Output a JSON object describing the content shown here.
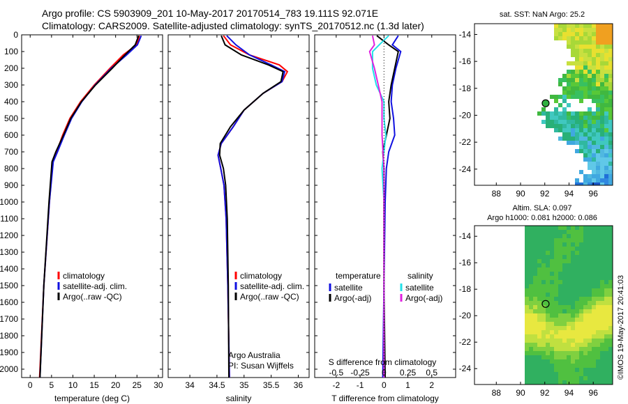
{
  "header": {
    "line1": "Argo profile: CS 5903909_201 10-May-2017 20170514_783 19.111S 92.071E",
    "line2": "Climatology: CARS2009. Satellite-adjusted climatology: synTS_20170512.nc (1.3d later)"
  },
  "colors": {
    "climatology": "#ff0000",
    "satellite": "#1010e0",
    "argo": "#000000",
    "salinity_satellite": "#22e0e8",
    "salinity_argo": "#e020e0"
  },
  "chart_data": [
    {
      "type": "line",
      "name": "temperature",
      "xlabel": "temperature (deg C)",
      "ylabel": "",
      "xlim": [
        -2,
        31
      ],
      "ylim": [
        2050,
        0
      ],
      "x_ticks": [
        0,
        5,
        10,
        15,
        20,
        25,
        30
      ],
      "y_ticks": [
        0,
        100,
        200,
        300,
        400,
        500,
        600,
        700,
        800,
        900,
        1000,
        1100,
        1200,
        1300,
        1400,
        1500,
        1600,
        1700,
        1800,
        1900,
        2000
      ],
      "legend": [
        "climatology",
        "satellite-adj. clim.",
        "Argo(..raw -QC)"
      ],
      "series": [
        {
          "name": "climatology",
          "depth": [
            5,
            60,
            120,
            200,
            300,
            400,
            500,
            600,
            700,
            760,
            1000,
            1500,
            2050
          ],
          "values": [
            25.6,
            24.9,
            21.8,
            18.7,
            15.0,
            11.8,
            9.3,
            7.6,
            6.2,
            5.3,
            4.5,
            3.2,
            2.2
          ]
        },
        {
          "name": "satellite-adj. clim.",
          "depth": [
            5,
            60,
            120,
            200,
            300,
            400,
            500,
            600,
            700,
            760,
            1000,
            1500,
            2050
          ],
          "values": [
            26.0,
            25.1,
            22.6,
            19.0,
            15.2,
            12.1,
            9.7,
            8.0,
            6.4,
            5.4,
            4.5,
            3.2,
            2.3
          ]
        },
        {
          "name": "Argo(..raw -QC)",
          "depth": [
            5,
            60,
            120,
            200,
            300,
            400,
            500,
            600,
            700,
            760,
            1000,
            1500,
            2050
          ],
          "values": [
            25.4,
            24.6,
            22.2,
            19.2,
            15.3,
            12.0,
            9.5,
            7.8,
            6.0,
            5.1,
            4.4,
            3.2,
            2.3
          ]
        }
      ]
    },
    {
      "type": "line",
      "name": "salinity",
      "xlabel": "salinity",
      "ylabel": "",
      "xlim": [
        33.6,
        36.2
      ],
      "ylim": [
        2050,
        0
      ],
      "x_ticks": [
        34,
        34.5,
        35,
        35.5,
        36
      ],
      "legend": [
        "climatology",
        "satellite-adj. clim.",
        "Argo(..raw -QC)"
      ],
      "annotations": [
        "Argo Australia",
        "PI: Susan Wijffels"
      ],
      "series": [
        {
          "name": "climatology",
          "depth": [
            5,
            60,
            120,
            180,
            220,
            280,
            350,
            450,
            550,
            650,
            720,
            800,
            900,
            1100,
            1500,
            2050
          ],
          "values": [
            34.62,
            34.75,
            35.1,
            35.65,
            35.8,
            35.7,
            35.35,
            35.0,
            34.8,
            34.58,
            34.52,
            34.57,
            34.63,
            34.67,
            34.7,
            34.73
          ]
        },
        {
          "name": "satellite-adj. clim.",
          "depth": [
            5,
            60,
            120,
            180,
            220,
            280,
            350,
            450,
            550,
            650,
            720,
            800,
            900,
            1100,
            1500,
            2050
          ],
          "values": [
            34.68,
            34.85,
            35.1,
            35.5,
            35.75,
            35.7,
            35.35,
            35.0,
            34.8,
            34.58,
            34.52,
            34.57,
            34.63,
            34.67,
            34.7,
            34.73
          ]
        },
        {
          "name": "Argo(..raw -QC)",
          "depth": [
            5,
            60,
            120,
            180,
            220,
            280,
            350,
            450,
            550,
            650,
            720,
            800,
            900,
            1100,
            1500,
            2050
          ],
          "values": [
            34.58,
            34.65,
            34.95,
            35.45,
            35.72,
            35.68,
            35.35,
            35.0,
            34.75,
            34.56,
            34.55,
            34.62,
            34.66,
            34.69,
            34.71,
            34.72
          ]
        }
      ]
    },
    {
      "type": "line",
      "name": "differences",
      "xlabel_bottom": "T difference from climatology",
      "xlabel_top": "S difference from climatology",
      "xlim": [
        -2.9,
        3.0
      ],
      "ylim": [
        2050,
        0
      ],
      "x_ticks": [
        -2,
        -1,
        0,
        1,
        2
      ],
      "s_ticks": [
        "-0.5",
        "-0.25",
        "0",
        "0.25",
        "0.5"
      ],
      "legend_temperature_title": "temperature",
      "legend_salinity_title": "salinity",
      "legend_temperature": [
        "satellite",
        "Argo(-adj)"
      ],
      "legend_salinity": [
        "satellite",
        "Argo(-adj)"
      ],
      "series": [
        {
          "name": "T satellite",
          "depth": [
            5,
            60,
            100,
            200,
            300,
            400,
            500,
            600,
            700,
            800,
            1000,
            1500,
            2050
          ],
          "values": [
            0.6,
            0.35,
            0.7,
            0.5,
            0.35,
            0.3,
            0.4,
            0.45,
            0.2,
            0.1,
            0.05,
            0.0,
            -0.05
          ]
        },
        {
          "name": "T Argo(-adj)",
          "depth": [
            5,
            60,
            100,
            200,
            300,
            400,
            500,
            600,
            700,
            800,
            1000,
            1500,
            2050
          ],
          "values": [
            -0.3,
            0.2,
            0.6,
            0.45,
            0.3,
            0.2,
            0.25,
            0.1,
            -0.05,
            0.0,
            0.0,
            0.0,
            0.05
          ]
        },
        {
          "name": "S satellite",
          "depth": [
            5,
            60,
            100,
            200,
            300,
            400,
            500,
            600,
            700,
            800,
            1000,
            1500,
            2050
          ],
          "values": [
            0.05,
            -0.05,
            -0.12,
            -0.12,
            -0.08,
            0.0,
            0.0,
            0.02,
            0.0,
            -0.02,
            0.0,
            0.0,
            0.0
          ]
        },
        {
          "name": "S Argo(-adj)",
          "depth": [
            5,
            60,
            100,
            200,
            300,
            400,
            500,
            600,
            700,
            800,
            1000,
            1500,
            2050
          ],
          "values": [
            -0.12,
            -0.1,
            -0.15,
            -0.1,
            -0.06,
            -0.02,
            -0.02,
            -0.02,
            -0.01,
            0.0,
            0.0,
            0.0,
            0.0
          ]
        }
      ]
    },
    {
      "type": "heatmap",
      "name": "sst-map",
      "title": "sat. SST: NaN Argo: 25.2",
      "x_ticks": [
        88,
        90,
        92,
        94,
        96
      ],
      "y_ticks": [
        -14,
        -16,
        -18,
        -20,
        -22,
        -24
      ],
      "xlim": [
        86.2,
        97.6
      ],
      "ylim": [
        -25.2,
        -13.2
      ],
      "marker": {
        "lon": 92.07,
        "lat": -19.11
      }
    },
    {
      "type": "heatmap",
      "name": "sla-map",
      "title_line1": "Altim. SLA: 0.097",
      "title_line2": "Argo h1000: 0.081 h2000: 0.086",
      "x_ticks": [
        88,
        90,
        92,
        94,
        96
      ],
      "y_ticks": [
        -14,
        -16,
        -18,
        -20,
        -22,
        -24
      ],
      "xlim": [
        86.2,
        97.6
      ],
      "ylim": [
        -25.2,
        -13.2
      ],
      "marker": {
        "lon": 92.07,
        "lat": -19.11
      }
    }
  ],
  "side_label": "©IMOS 19-May-2017 20:41:03"
}
